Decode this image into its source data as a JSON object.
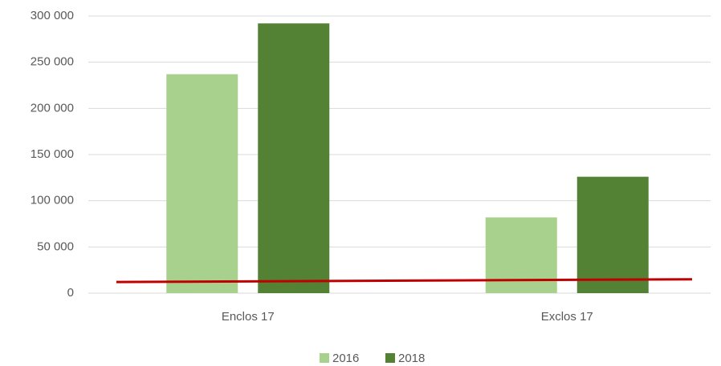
{
  "chart_data": {
    "type": "bar",
    "categories": [
      "Enclos 17",
      "Exclos 17"
    ],
    "series": [
      {
        "name": "2016",
        "color": "#a9d18e",
        "values": [
          237000,
          82000
        ]
      },
      {
        "name": "2018",
        "color": "#548235",
        "values": [
          292000,
          126000
        ]
      }
    ],
    "reference_line": {
      "color": "#c00000",
      "values": [
        12000,
        15000
      ]
    },
    "ylim": [
      0,
      300000
    ],
    "yticks": [
      0,
      {
        "value": 50000,
        "label": "50 000"
      },
      {
        "value": 100000,
        "label": "100 000"
      },
      {
        "value": 150000,
        "label": "150 000"
      },
      {
        "value": 200000,
        "label": "200 000"
      },
      {
        "value": 250000,
        "label": "250 000"
      },
      {
        "value": 300000,
        "label": "300 000"
      }
    ],
    "grid": true,
    "legend": "bottom"
  }
}
